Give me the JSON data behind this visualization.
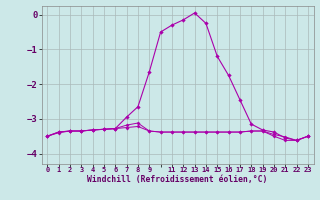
{
  "xlabel": "Windchill (Refroidissement éolien,°C)",
  "bg_color": "#cce8e8",
  "grid_color": "#aababa",
  "line_color": "#aa00aa",
  "x": [
    0,
    1,
    2,
    3,
    4,
    5,
    6,
    7,
    8,
    9,
    10,
    11,
    12,
    13,
    14,
    15,
    16,
    17,
    18,
    19,
    20,
    21,
    22,
    23
  ],
  "series1": [
    -3.5,
    -3.4,
    -3.35,
    -3.35,
    -3.32,
    -3.3,
    -3.28,
    -3.25,
    -3.22,
    -3.35,
    -3.38,
    -3.38,
    -3.38,
    -3.38,
    -3.38,
    -3.38,
    -3.38,
    -3.38,
    -3.35,
    -3.35,
    -3.5,
    -3.62,
    -3.62,
    -3.5
  ],
  "series2": [
    -3.5,
    -3.38,
    -3.35,
    -3.35,
    -3.32,
    -3.3,
    -3.28,
    -2.95,
    -2.65,
    -1.65,
    -0.5,
    -0.3,
    -0.15,
    0.05,
    -0.25,
    -1.2,
    -1.75,
    -2.45,
    -3.15,
    -3.32,
    -3.38,
    -3.55,
    -3.62,
    -3.5
  ],
  "series3": [
    -3.5,
    -3.38,
    -3.35,
    -3.35,
    -3.32,
    -3.3,
    -3.28,
    -3.18,
    -3.12,
    -3.35,
    -3.38,
    -3.38,
    -3.38,
    -3.38,
    -3.38,
    -3.38,
    -3.38,
    -3.38,
    -3.35,
    -3.35,
    -3.45,
    -3.52,
    -3.62,
    -3.5
  ],
  "ylim": [
    -4.3,
    0.25
  ],
  "xlim": [
    -0.5,
    23.5
  ],
  "yticks": [
    0,
    -1,
    -2,
    -3,
    -4
  ]
}
